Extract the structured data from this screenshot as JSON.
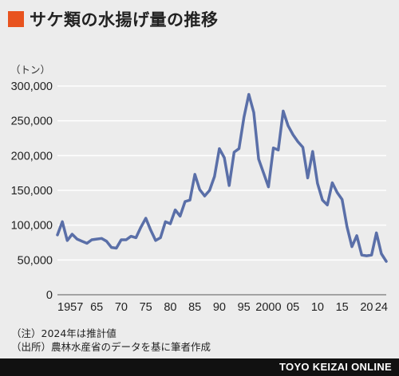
{
  "header": {
    "title": "サケ類の水揚げ量の推移",
    "accent_color": "#e8531f"
  },
  "chart_data": {
    "type": "line",
    "title": "サケ類の水揚げ量の推移",
    "unit_label": "（トン）",
    "xlabel": "",
    "ylabel": "",
    "x_ticks": [
      "1957",
      "65",
      "70",
      "75",
      "80",
      "85",
      "90",
      "95",
      "2000",
      "05",
      "10",
      "15",
      "20",
      "24"
    ],
    "x_tick_years": [
      1957,
      1965,
      1970,
      1975,
      1980,
      1985,
      1990,
      1995,
      2000,
      2005,
      2010,
      2015,
      2020,
      2024
    ],
    "y_ticks": [
      "0",
      "50,000",
      "100,000",
      "150,000",
      "200,000",
      "250,000",
      "300,000"
    ],
    "y_tick_values": [
      0,
      50000,
      100000,
      150000,
      200000,
      250000,
      300000
    ],
    "xlim": [
      1957,
      2024
    ],
    "ylim": [
      0,
      300000
    ],
    "grid": true,
    "line_color": "#5a6fa8",
    "series": [
      {
        "x": [
          1957,
          1958,
          1959,
          1960,
          1961,
          1962,
          1963,
          1964,
          1965,
          1966,
          1967,
          1968,
          1969,
          1970,
          1971,
          1972,
          1973,
          1974,
          1975,
          1976,
          1977,
          1978,
          1979,
          1980,
          1981,
          1982,
          1983,
          1984,
          1985,
          1986,
          1987,
          1988,
          1989,
          1990,
          1991,
          1992,
          1993,
          1994,
          1995,
          1996,
          1997,
          1998,
          1999,
          2000,
          2001,
          2002,
          2003,
          2004,
          2005,
          2006,
          2007,
          2008,
          2009,
          2010,
          2011,
          2012,
          2013,
          2014,
          2015,
          2016,
          2017,
          2018,
          2019,
          2020,
          2021,
          2022,
          2023,
          2024
        ],
        "values": [
          86000,
          105000,
          78000,
          87000,
          80000,
          77000,
          74000,
          79000,
          80000,
          81000,
          77000,
          68000,
          67000,
          79000,
          79000,
          84000,
          82000,
          97000,
          110000,
          93000,
          78000,
          82000,
          105000,
          102000,
          122000,
          113000,
          134000,
          136000,
          173000,
          151000,
          142000,
          150000,
          170000,
          210000,
          197000,
          157000,
          205000,
          210000,
          255000,
          288000,
          262000,
          195000,
          175000,
          155000,
          211000,
          208000,
          264000,
          243000,
          230000,
          220000,
          212000,
          168000,
          206000,
          160000,
          136000,
          129000,
          161000,
          147000,
          137000,
          98000,
          69000,
          85000,
          57000,
          56000,
          57000,
          89000,
          59000,
          48000
        ]
      }
    ]
  },
  "notes": [
    "（注）2024年は推計値",
    "（出所）農林水産省のデータを基に筆者作成"
  ],
  "footer": {
    "brand": "TOYO KEIZAI ONLINE"
  }
}
